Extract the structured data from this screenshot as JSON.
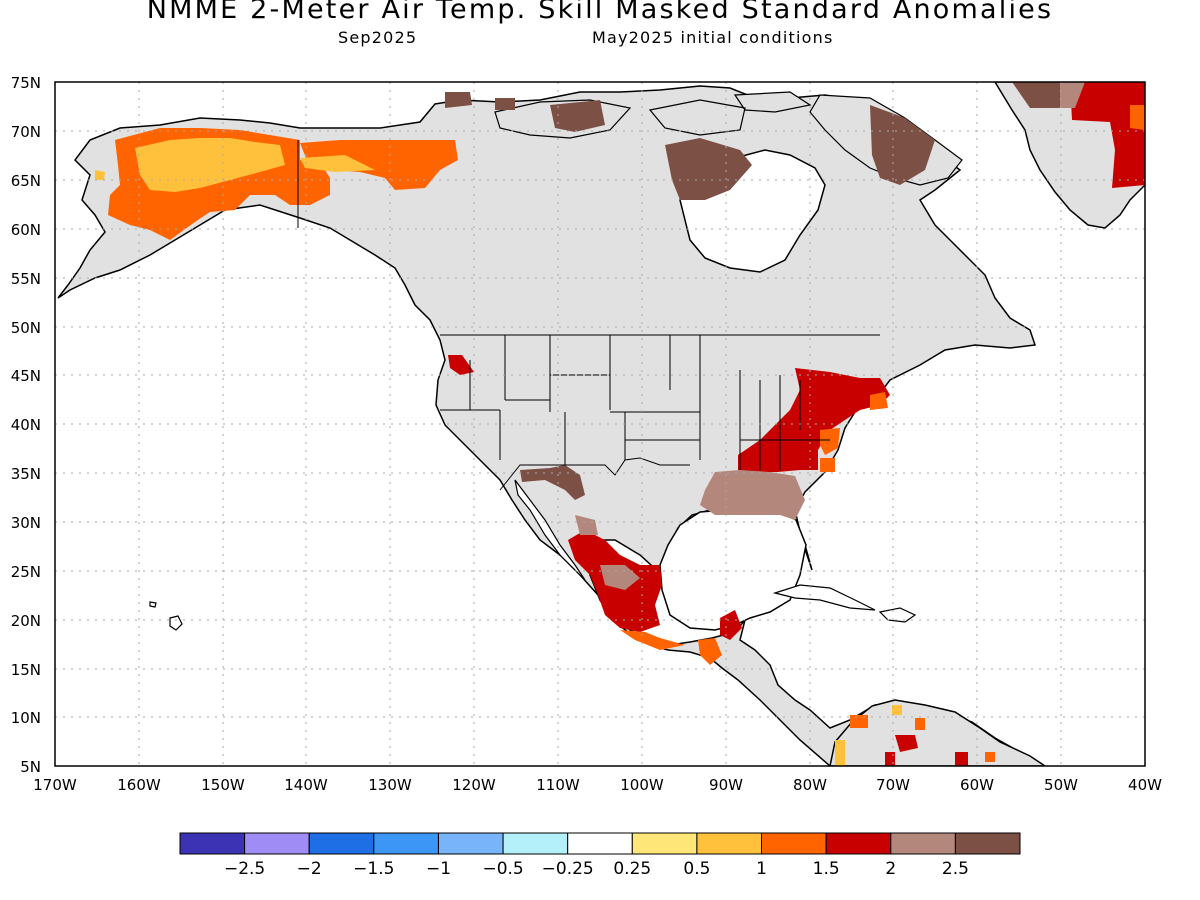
{
  "header": {
    "title": "NMME 2-Meter Air Temp. Skill Masked Standard Anomalies",
    "target_month": "Sep2025",
    "init_conditions": "May2025 initial conditions"
  },
  "map": {
    "lat_labels": [
      "75N",
      "70N",
      "65N",
      "60N",
      "55N",
      "50N",
      "45N",
      "40N",
      "35N",
      "30N",
      "25N",
      "20N",
      "15N",
      "10N",
      "5N"
    ],
    "lon_labels": [
      "170W",
      "160W",
      "150W",
      "140W",
      "130W",
      "120W",
      "110W",
      "100W",
      "90W",
      "80W",
      "70W",
      "60W",
      "50W",
      "40W"
    ],
    "lon_range": [
      -170,
      -40
    ],
    "lat_range": [
      5,
      75
    ]
  },
  "colorbar": {
    "colors": [
      "#3c32b4",
      "#a08cf5",
      "#1e6ee6",
      "#3c96f5",
      "#78b4fa",
      "#b4f0fa",
      "#ffffff",
      "#ffe678",
      "#ffc03c",
      "#ff6400",
      "#c80000",
      "#b4877d",
      "#7d5046"
    ],
    "labels": [
      "−2.5",
      "−2",
      "−1.5",
      "−1",
      "−0.5",
      "−0.25",
      "0.25",
      "0.5",
      "1",
      "1.5",
      "2",
      "2.5"
    ]
  },
  "colors": {
    "land": "#e1e1e1",
    "frame": "#000000",
    "grid": "#aaaaaa"
  }
}
